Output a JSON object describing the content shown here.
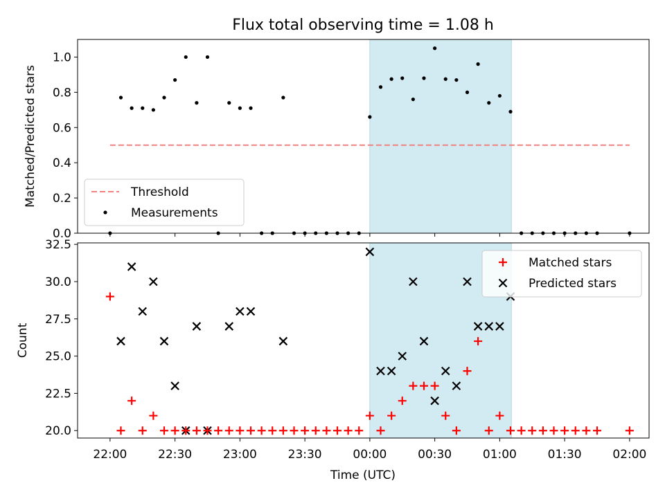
{
  "chart_data": [
    {
      "type": "scatter",
      "title": "Flux total observing time = 1.08 h",
      "xlabel": "",
      "ylabel": "Matched/Predicted stars",
      "ylim": [
        0,
        1.1
      ],
      "yticks": [
        "0.0",
        "0.2",
        "0.4",
        "0.6",
        "0.8",
        "1.0"
      ],
      "xlim_hours": [
        -0.25,
        4.15
      ],
      "shaded_span_hours": [
        2.0,
        3.09
      ],
      "shade_color": "#add8e6",
      "threshold": {
        "name": "Threshold",
        "value": 0.5,
        "x_range_hours": [
          0,
          4.0
        ],
        "color": "#f08080"
      },
      "legend": {
        "placement": "lower-left",
        "entries": [
          "Threshold",
          "Measurements"
        ]
      },
      "series": [
        {
          "name": "Measurements",
          "color": "#000000",
          "marker": "dot",
          "x_hours": [
            0.0,
            0.0833,
            0.1667,
            0.25,
            0.3333,
            0.4167,
            0.5,
            0.5833,
            0.6667,
            0.75,
            0.8333,
            0.9167,
            1.0,
            1.0833,
            1.1667,
            1.25,
            1.3333,
            1.4167,
            1.5,
            1.5833,
            1.6667,
            1.75,
            1.8333,
            1.9167,
            2.0,
            2.0833,
            2.1667,
            2.25,
            2.3333,
            2.4167,
            2.5,
            2.5833,
            2.6667,
            2.75,
            2.8333,
            2.9167,
            3.0,
            3.0833,
            3.1667,
            3.25,
            3.3333,
            3.4167,
            3.5,
            3.5833,
            3.6667,
            3.75,
            4.0
          ],
          "values": [
            0,
            0.77,
            0.71,
            0.71,
            0.7,
            0.77,
            0.87,
            1.0,
            0.74,
            1.0,
            0,
            0.74,
            0.71,
            0.71,
            0,
            0,
            0.77,
            0,
            0,
            0,
            0,
            0,
            0,
            0,
            0.66,
            0.83,
            0.875,
            0.88,
            0.76,
            0.88,
            1.05,
            0.875,
            0.87,
            0.8,
            0.96,
            0.74,
            0.78,
            0.69,
            0,
            0,
            0,
            0,
            0,
            0,
            0,
            0,
            0
          ]
        }
      ]
    },
    {
      "type": "scatter",
      "title": "",
      "xlabel": "Time (UTC)",
      "ylabel": "Count",
      "ylim": [
        19.5,
        32.6
      ],
      "yticks": [
        "20.0",
        "22.5",
        "25.0",
        "27.5",
        "30.0",
        "32.5"
      ],
      "xlim_hours": [
        -0.25,
        4.15
      ],
      "shaded_span_hours": [
        2.0,
        3.09
      ],
      "shade_color": "#add8e6",
      "categories": [
        "22:00",
        "22:30",
        "23:00",
        "23:30",
        "00:00",
        "00:30",
        "01:00",
        "01:30",
        "02:00"
      ],
      "legend": {
        "placement": "top-right",
        "entries": [
          "Matched stars",
          "Predicted stars"
        ]
      },
      "series": [
        {
          "name": "Matched stars",
          "color": "#ff0000",
          "marker": "plus",
          "x_hours": [
            0.0,
            0.0833,
            0.1667,
            0.25,
            0.3333,
            0.4167,
            0.5,
            0.5833,
            0.6667,
            0.75,
            0.8333,
            0.9167,
            1.0,
            1.0833,
            1.1667,
            1.25,
            1.3333,
            1.4167,
            1.5,
            1.5833,
            1.6667,
            1.75,
            1.8333,
            1.9167,
            2.0,
            2.0833,
            2.1667,
            2.25,
            2.3333,
            2.4167,
            2.5,
            2.5833,
            2.6667,
            2.75,
            2.8333,
            2.9167,
            3.0,
            3.0833,
            3.1667,
            3.25,
            3.3333,
            3.4167,
            3.5,
            3.5833,
            3.6667,
            3.75,
            4.0
          ],
          "values": [
            29,
            20,
            22,
            20,
            21,
            20,
            20,
            20,
            20,
            20,
            20,
            20,
            20,
            20,
            20,
            20,
            20,
            20,
            20,
            20,
            20,
            20,
            20,
            20,
            21,
            20,
            21,
            22,
            23,
            23,
            23,
            21,
            20,
            24,
            26,
            20,
            21,
            20,
            20,
            20,
            20,
            20,
            20,
            20,
            20,
            20,
            20
          ]
        },
        {
          "name": "Predicted stars",
          "color": "#000000",
          "marker": "x",
          "x_hours": [
            0.0833,
            0.1667,
            0.25,
            0.3333,
            0.4167,
            0.5,
            0.5833,
            0.6667,
            0.75,
            0.9167,
            1.0,
            1.0833,
            1.3333,
            2.0,
            2.0833,
            2.1667,
            2.25,
            2.3333,
            2.4167,
            2.5,
            2.5833,
            2.6667,
            2.75,
            2.8333,
            2.9167,
            3.0,
            3.0833
          ],
          "values": [
            26,
            31,
            28,
            30,
            26,
            23,
            20,
            27,
            20,
            27,
            28,
            28,
            26,
            32,
            24,
            24,
            25,
            30,
            26,
            22,
            24,
            23,
            30,
            27,
            27,
            27,
            29
          ]
        }
      ]
    }
  ]
}
